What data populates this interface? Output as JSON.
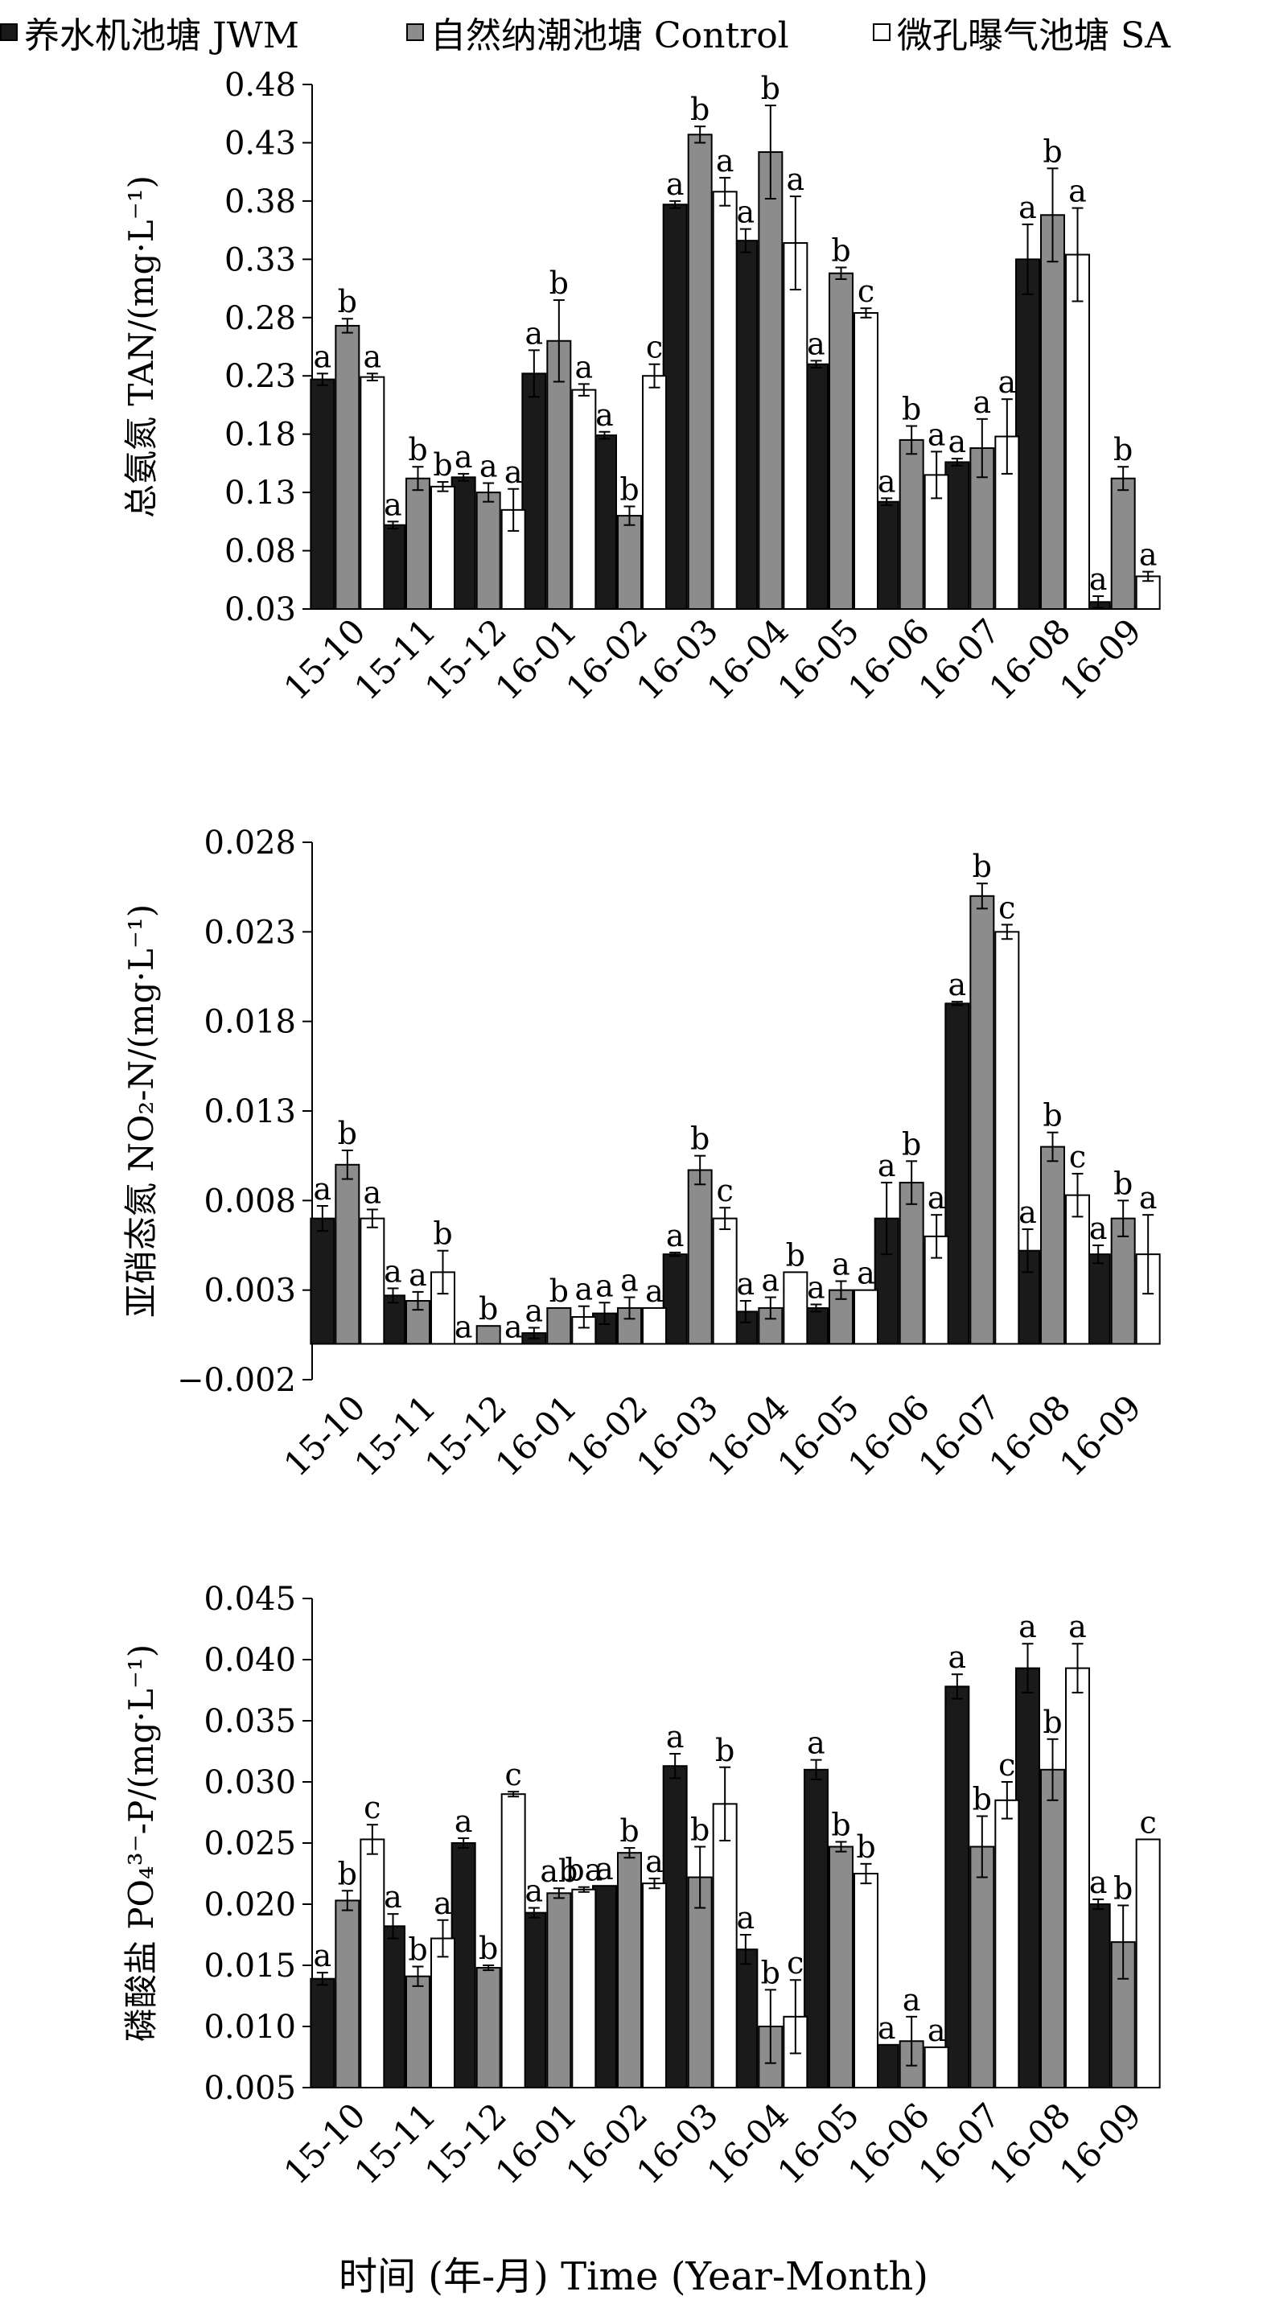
{
  "legend": [
    {
      "label": "养水机池塘 JWM",
      "color": "#1a1a1a"
    },
    {
      "label": "自然纳潮池塘 Control",
      "color": "#8c8c8c"
    },
    {
      "label": "微孔曝气池塘 SA",
      "color": "#ffffff"
    }
  ],
  "x_axis_title": "时间 (年-月) Time (Year-Month)",
  "chart_data": [
    {
      "type": "bar",
      "ylabel_html": "总氨氮 TAN/(mg·L⁻¹)",
      "ylabel": "总氨氮 TAN/(mg·L⁻¹)",
      "categories": [
        "15-10",
        "15-11",
        "15-12",
        "16-01",
        "16-02",
        "16-03",
        "16-04",
        "16-05",
        "16-06",
        "16-07",
        "16-08",
        "16-09"
      ],
      "ylim": [
        0.03,
        0.48
      ],
      "yticks": [
        "0.03",
        "0.08",
        "0.13",
        "0.18",
        "0.23",
        "0.28",
        "0.33",
        "0.38",
        "0.43",
        "0.48"
      ],
      "series": [
        {
          "name": "养水机池塘 JWM",
          "color": "#1a1a1a",
          "values": [
            0.227,
            0.102,
            0.143,
            0.232,
            0.179,
            0.377,
            0.346,
            0.24,
            0.122,
            0.156,
            0.33,
            0.036
          ],
          "errors": [
            0.005,
            0.003,
            0.003,
            0.02,
            0.003,
            0.003,
            0.01,
            0.003,
            0.003,
            0.003,
            0.03,
            0.005
          ],
          "labels": [
            "a",
            "a",
            "a",
            "a",
            "a",
            "a",
            "a",
            "a",
            "a",
            "a",
            "a",
            "a"
          ]
        },
        {
          "name": "自然纳潮池塘 Control",
          "color": "#8c8c8c",
          "values": [
            0.273,
            0.142,
            0.13,
            0.26,
            0.11,
            0.437,
            0.422,
            0.318,
            0.175,
            0.168,
            0.368,
            0.142
          ],
          "errors": [
            0.006,
            0.01,
            0.008,
            0.035,
            0.008,
            0.007,
            0.04,
            0.005,
            0.012,
            0.025,
            0.04,
            0.01
          ],
          "labels": [
            "b",
            "b",
            "a",
            "b",
            "b",
            "b",
            "b",
            "b",
            "b",
            "a",
            "b",
            "b"
          ]
        },
        {
          "name": "微孔曝气池塘 SA",
          "color": "#ffffff",
          "values": [
            0.229,
            0.135,
            0.115,
            0.218,
            0.23,
            0.388,
            0.344,
            0.284,
            0.145,
            0.178,
            0.334,
            0.058
          ],
          "errors": [
            0.003,
            0.004,
            0.018,
            0.005,
            0.01,
            0.012,
            0.04,
            0.004,
            0.02,
            0.032,
            0.04,
            0.004
          ],
          "labels": [
            "a",
            "b",
            "a",
            "a",
            "c",
            "a",
            "a",
            "c",
            "a",
            "a",
            "a",
            "a"
          ]
        }
      ]
    },
    {
      "type": "bar",
      "ylabel": "亚硝态氮 NO₂-N/(mg·L⁻¹)",
      "categories": [
        "15-10",
        "15-11",
        "15-12",
        "16-01",
        "16-02",
        "16-03",
        "16-04",
        "16-05",
        "16-06",
        "16-07",
        "16-08",
        "16-09"
      ],
      "ylim": [
        -0.002,
        0.028
      ],
      "yticks": [
        "−0.002",
        "0.003",
        "0.008",
        "0.013",
        "0.018",
        "0.023",
        "0.028"
      ],
      "series": [
        {
          "name": "养水机池塘 JWM",
          "color": "#1a1a1a",
          "values": [
            0.007,
            0.0027,
            0.0,
            0.0006,
            0.0017,
            0.005,
            0.0018,
            0.002,
            0.007,
            0.019,
            0.0052,
            0.005
          ],
          "errors": [
            0.0007,
            0.0004,
            0.0,
            0.0003,
            0.0006,
            0.0001,
            0.0006,
            0.0002,
            0.002,
            0.0001,
            0.0012,
            0.0005
          ],
          "labels": [
            "a",
            "a",
            "a",
            "a",
            "a",
            "a",
            "a",
            "a",
            "a",
            "a",
            "a",
            "a"
          ]
        },
        {
          "name": "自然纳潮池塘 Control",
          "color": "#8c8c8c",
          "values": [
            0.01,
            0.0024,
            0.001,
            0.002,
            0.002,
            0.0097,
            0.002,
            0.003,
            0.009,
            0.025,
            0.011,
            0.007
          ],
          "errors": [
            0.0008,
            0.0005,
            0.0,
            0.0,
            0.0006,
            0.0008,
            0.0006,
            0.0005,
            0.0012,
            0.0007,
            0.0008,
            0.001
          ],
          "labels": [
            "b",
            "a",
            "b",
            "b",
            "a",
            "b",
            "a",
            "a",
            "b",
            "b",
            "b",
            "b"
          ]
        },
        {
          "name": "微孔曝气池塘 SA",
          "color": "#ffffff",
          "values": [
            0.007,
            0.004,
            0.0,
            0.0015,
            0.002,
            0.007,
            0.004,
            0.003,
            0.006,
            0.023,
            0.0083,
            0.005
          ],
          "errors": [
            0.0005,
            0.0012,
            0.0,
            0.0006,
            0.0,
            0.0006,
            0.0,
            0.0,
            0.0012,
            0.0004,
            0.0012,
            0.0022
          ],
          "labels": [
            "a",
            "b",
            "a",
            "a",
            "a",
            "c",
            "b",
            "a",
            "a",
            "c",
            "c",
            "a"
          ]
        }
      ]
    },
    {
      "type": "bar",
      "ylabel": "磷酸盐 PO₄³⁻-P/(mg·L⁻¹)",
      "categories": [
        "15-10",
        "15-11",
        "15-12",
        "16-01",
        "16-02",
        "16-03",
        "16-04",
        "16-05",
        "16-06",
        "16-07",
        "16-08",
        "16-09"
      ],
      "ylim": [
        0.005,
        0.045
      ],
      "yticks": [
        "0.005",
        "0.010",
        "0.015",
        "0.020",
        "0.025",
        "0.030",
        "0.035",
        "0.040",
        "0.045"
      ],
      "series": [
        {
          "name": "养水机池塘 JWM",
          "color": "#1a1a1a",
          "values": [
            0.0139,
            0.0182,
            0.025,
            0.0193,
            0.0215,
            0.0313,
            0.0163,
            0.031,
            0.0085,
            0.0378,
            0.0393,
            0.02
          ],
          "errors": [
            0.0005,
            0.001,
            0.0004,
            0.0004,
            0.0,
            0.001,
            0.0012,
            0.0008,
            0.0,
            0.001,
            0.002,
            0.0004
          ],
          "labels": [
            "a",
            "a",
            "a",
            "a",
            "a",
            "a",
            "a",
            "a",
            "a",
            "a",
            "a",
            "a"
          ]
        },
        {
          "name": "自然纳潮池塘 Control",
          "color": "#8c8c8c",
          "values": [
            0.0203,
            0.0141,
            0.0148,
            0.0209,
            0.0242,
            0.0222,
            0.01,
            0.0247,
            0.0088,
            0.0247,
            0.031,
            0.0169
          ],
          "errors": [
            0.0008,
            0.0008,
            0.0002,
            0.0004,
            0.0004,
            0.0025,
            0.003,
            0.0004,
            0.002,
            0.0025,
            0.0025,
            0.003
          ],
          "labels": [
            "b",
            "b",
            "b",
            "ab",
            "b",
            "b",
            "b",
            "b",
            "a",
            "b",
            "b",
            "b"
          ]
        },
        {
          "name": "微孔曝气池塘 SA",
          "color": "#ffffff",
          "values": [
            0.0253,
            0.0172,
            0.029,
            0.0212,
            0.0217,
            0.0282,
            0.0108,
            0.0225,
            0.0083,
            0.0285,
            0.0393,
            0.0253
          ],
          "errors": [
            0.0012,
            0.0015,
            0.0002,
            0.0002,
            0.0004,
            0.003,
            0.003,
            0.0008,
            0.0,
            0.0015,
            0.002,
            0.0
          ],
          "labels": [
            "c",
            "a",
            "c",
            "ba",
            "a",
            "b",
            "c",
            "b",
            "a",
            "c",
            "a",
            "c"
          ]
        }
      ]
    }
  ]
}
